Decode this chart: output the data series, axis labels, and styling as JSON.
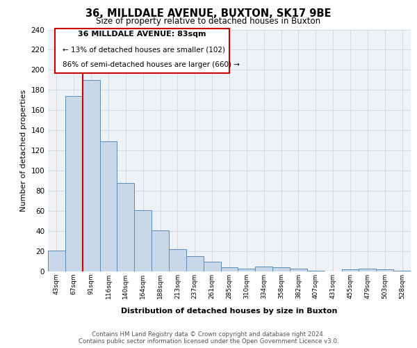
{
  "title_line1": "36, MILLDALE AVENUE, BUXTON, SK17 9BE",
  "title_line2": "Size of property relative to detached houses in Buxton",
  "xlabel": "Distribution of detached houses by size in Buxton",
  "ylabel": "Number of detached properties",
  "bin_labels": [
    "43sqm",
    "67sqm",
    "91sqm",
    "116sqm",
    "140sqm",
    "164sqm",
    "188sqm",
    "213sqm",
    "237sqm",
    "261sqm",
    "285sqm",
    "310sqm",
    "334sqm",
    "358sqm",
    "382sqm",
    "407sqm",
    "431sqm",
    "455sqm",
    "479sqm",
    "503sqm",
    "528sqm"
  ],
  "bar_heights": [
    21,
    174,
    190,
    129,
    88,
    61,
    41,
    22,
    15,
    10,
    4,
    3,
    5,
    4,
    3,
    1,
    0,
    2,
    3,
    2,
    1
  ],
  "bar_color": "#c8d8e8",
  "bar_edge_color": "#5b8db8",
  "ylim": [
    0,
    240
  ],
  "yticks": [
    0,
    20,
    40,
    60,
    80,
    100,
    120,
    140,
    160,
    180,
    200,
    220,
    240
  ],
  "property_line_x": 1.5,
  "property_line_color": "#cc0000",
  "annotation_title": "36 MILLDALE AVENUE: 83sqm",
  "annotation_line1": "← 13% of detached houses are smaller (102)",
  "annotation_line2": "86% of semi-detached houses are larger (660) →",
  "annotation_box_edge": "#cc0000",
  "footer_line1": "Contains HM Land Registry data © Crown copyright and database right 2024.",
  "footer_line2": "Contains public sector information licensed under the Open Government Licence v3.0.",
  "background_color": "#eef2f7",
  "grid_color": "#c8cfd8"
}
